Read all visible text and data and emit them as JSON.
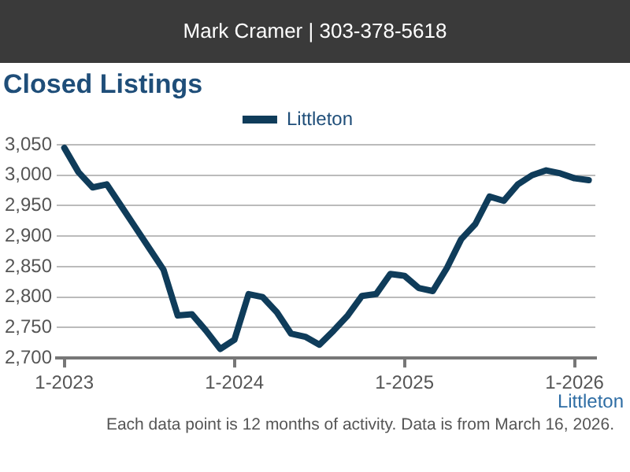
{
  "chart_data": {
    "type": "line",
    "title": "Closed Listings",
    "annotations": [
      "Mark Cramer | 303-378-5618",
      "Littleton",
      "Each data point is 12 months of activity. Data is from March 16, 2026."
    ],
    "x": [
      "2023-01",
      "2023-02",
      "2023-03",
      "2023-04",
      "2023-05",
      "2023-06",
      "2023-07",
      "2023-08",
      "2023-09",
      "2023-10",
      "2023-11",
      "2023-12",
      "2024-01",
      "2024-02",
      "2024-03",
      "2024-04",
      "2024-05",
      "2024-06",
      "2024-07",
      "2024-08",
      "2024-09",
      "2024-10",
      "2024-11",
      "2024-12",
      "2025-01",
      "2025-02",
      "2025-03",
      "2025-04",
      "2025-05",
      "2025-06",
      "2025-07",
      "2025-08",
      "2025-09",
      "2025-10",
      "2025-11",
      "2025-12",
      "2026-01",
      "2026-02"
    ],
    "series": [
      {
        "name": "Littleton",
        "color": "#0f3c5a",
        "values": [
          3045,
          3005,
          2980,
          2985,
          2950,
          2915,
          2880,
          2845,
          2770,
          2772,
          2745,
          2715,
          2730,
          2805,
          2800,
          2775,
          2740,
          2735,
          2722,
          2745,
          2770,
          2802,
          2805,
          2838,
          2835,
          2815,
          2810,
          2848,
          2895,
          2920,
          2965,
          2958,
          2985,
          3000,
          3008,
          3003,
          2995,
          2992
        ]
      }
    ],
    "xlim": [
      "2022-12-15",
      "2026-02-15"
    ],
    "xticks": [
      {
        "value": "2023-01",
        "label": "1-2023"
      },
      {
        "value": "2024-01",
        "label": "1-2024"
      },
      {
        "value": "2025-01",
        "label": "1-2025"
      },
      {
        "value": "2026-01",
        "label": "1-2026"
      }
    ],
    "ylim": [
      2700,
      3050
    ],
    "yticks": [
      {
        "value": 2700,
        "label": "2,700"
      },
      {
        "value": 2750,
        "label": "2,750"
      },
      {
        "value": 2800,
        "label": "2,800"
      },
      {
        "value": 2850,
        "label": "2,850"
      },
      {
        "value": 2900,
        "label": "2,900"
      },
      {
        "value": 2950,
        "label": "2,950"
      },
      {
        "value": 3000,
        "label": "3,000"
      },
      {
        "value": 3050,
        "label": "3,050"
      }
    ],
    "grid": "y",
    "legend": "top",
    "marker": "none",
    "line_style": "solid"
  }
}
